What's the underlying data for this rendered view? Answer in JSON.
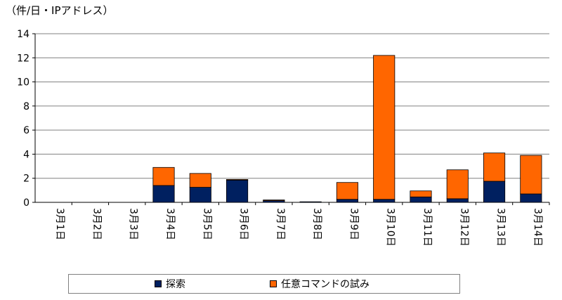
{
  "chart_data": {
    "type": "bar",
    "stacked": true,
    "ylabel": "（件/日・IPアドレス）",
    "xlabel": "",
    "ylim": [
      0,
      14
    ],
    "yticks": [
      0,
      2,
      4,
      6,
      8,
      10,
      12,
      14
    ],
    "grid": true,
    "legend_position": "bottom",
    "categories": [
      "3月1日",
      "3月2日",
      "3月3日",
      "3月4日",
      "3月5日",
      "3月6日",
      "3月7日",
      "3月8日",
      "3月9日",
      "3月10日",
      "3月11日",
      "3月12日",
      "3月13日",
      "3月14日"
    ],
    "series": [
      {
        "name": "探索",
        "color": "#002060",
        "values": [
          0,
          0,
          0,
          1.4,
          1.25,
          1.85,
          0.15,
          0.05,
          0.25,
          0.25,
          0.45,
          0.3,
          1.75,
          0.7
        ]
      },
      {
        "name": "任意コマンドの試み",
        "color": "#FF6600",
        "values": [
          0,
          0,
          0,
          1.5,
          1.15,
          0.05,
          0.05,
          0.0,
          1.4,
          11.95,
          0.5,
          2.4,
          2.35,
          3.2
        ]
      }
    ]
  }
}
